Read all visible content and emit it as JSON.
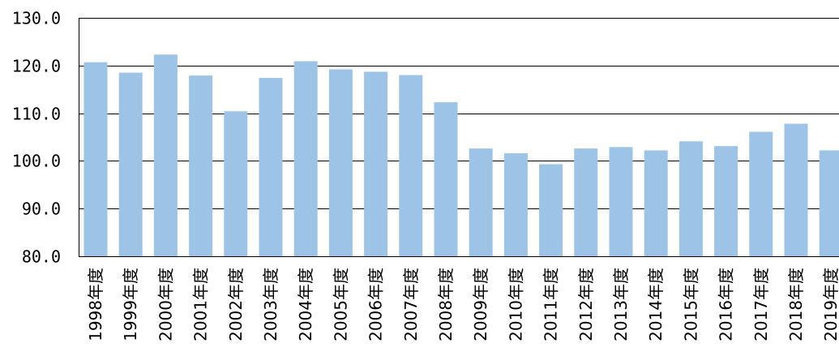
{
  "chart_data": {
    "type": "bar",
    "categories": [
      "1998年度",
      "1999年度",
      "2000年度",
      "2001年度",
      "2002年度",
      "2003年度",
      "2004年度",
      "2005年度",
      "2006年度",
      "2007年度",
      "2008年度",
      "2009年度",
      "2010年度",
      "2011年度",
      "2012年度",
      "2013年度",
      "2014年度",
      "2015年度",
      "2016年度",
      "2017年度",
      "2018年度",
      "2019年度"
    ],
    "values": [
      120.7,
      118.5,
      122.3,
      117.9,
      110.4,
      117.4,
      120.9,
      119.2,
      118.7,
      118.0,
      112.3,
      102.6,
      101.6,
      99.3,
      102.6,
      102.9,
      102.2,
      104.1,
      103.1,
      106.1,
      107.8,
      102.2
    ],
    "yticks": [
      "80.0",
      "90.0",
      "100.0",
      "110.0",
      "120.0",
      "130.0"
    ],
    "ylim": [
      80,
      130
    ],
    "grid": true,
    "bar_color": "#9DC3E6",
    "title": "",
    "xlabel": "",
    "ylabel": ""
  }
}
